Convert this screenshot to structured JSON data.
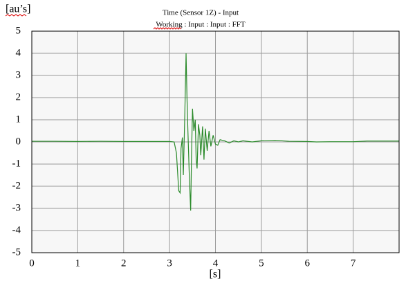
{
  "chart_data": {
    "type": "line",
    "title": "Time (Sensor 1Z) - Input",
    "subtitle": "Working : Input : Input : FFT",
    "y_label": "[au’s]",
    "x_label": "[s]",
    "xlim": [
      0,
      8
    ],
    "xticks": [
      0,
      1,
      2,
      3,
      4,
      5,
      6,
      7
    ],
    "ylim": [
      -5,
      5
    ],
    "yticks": [
      5,
      4,
      3,
      2,
      1,
      0,
      -1,
      -2,
      -3,
      -4,
      -5
    ],
    "grid": true,
    "series": [
      {
        "color": "#2a8a2a",
        "x": [
          0,
          0.5,
          1,
          1.5,
          2,
          2.5,
          3.0,
          3.1,
          3.15,
          3.2,
          3.23,
          3.25,
          3.28,
          3.3,
          3.33,
          3.36,
          3.38,
          3.4,
          3.43,
          3.46,
          3.48,
          3.5,
          3.53,
          3.56,
          3.58,
          3.6,
          3.63,
          3.66,
          3.68,
          3.72,
          3.75,
          3.78,
          3.82,
          3.86,
          3.9,
          3.95,
          4.0,
          4.05,
          4.1,
          4.2,
          4.3,
          4.4,
          4.5,
          4.6,
          4.8,
          5.0,
          5.3,
          5.6,
          6.0,
          6.2,
          6.5,
          7.0,
          7.3,
          7.6,
          8.0
        ],
        "values": [
          0.03,
          0.03,
          0.02,
          0.03,
          0.02,
          0.02,
          0.02,
          0.0,
          -0.5,
          -2.2,
          -2.3,
          -0.3,
          0.2,
          -1.5,
          1.0,
          4.0,
          2.0,
          0.5,
          -1.5,
          -3.1,
          -0.5,
          1.5,
          0.5,
          1.0,
          -0.8,
          -1.2,
          0.8,
          0.3,
          -0.6,
          0.7,
          -0.8,
          0.6,
          -0.4,
          0.5,
          -0.2,
          0.3,
          -0.1,
          -0.15,
          0.1,
          0.05,
          -0.05,
          0.05,
          0.0,
          0.05,
          0.0,
          0.05,
          0.07,
          0.03,
          0.02,
          0.0,
          0.01,
          0.01,
          0.04,
          0.04,
          0.04
        ]
      }
    ]
  }
}
